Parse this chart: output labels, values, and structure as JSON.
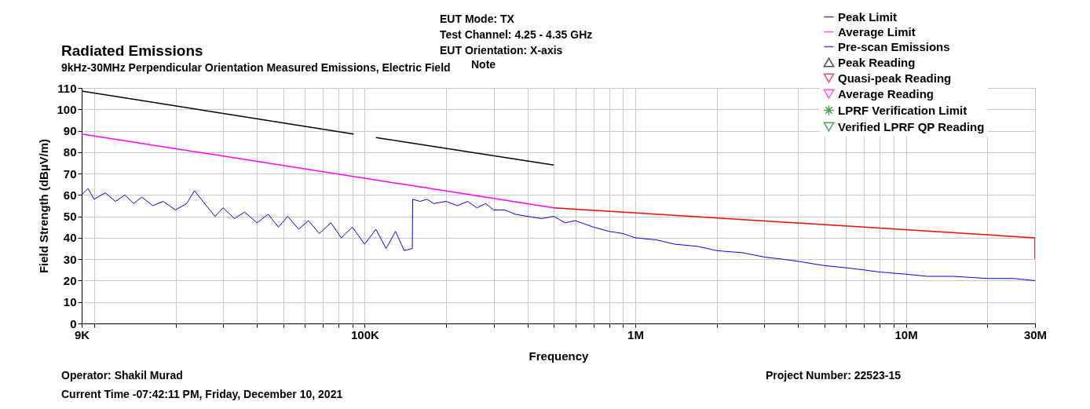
{
  "chart_data": {
    "type": "line",
    "title": "Radiated Emissions",
    "subtitle": "9kHz-30MHz Perpendicular Orientation Measured Emissions, Electric Field",
    "xlabel": "Frequency",
    "ylabel": "Field Strength (dBµV/m)",
    "annotations": [
      "EUT Mode: TX",
      "Test Channel: 4.25 - 4.35 GHz",
      "EUT Orientation: X-axis",
      "Note",
      "Operator: Shakil Murad",
      "Current Time -07:42:11 PM, Friday, December 10, 2021",
      "Project Number: 22523-15"
    ],
    "log": "x",
    "xlim": [
      9000,
      30000000
    ],
    "ylim": [
      0,
      110
    ],
    "xticks": [
      {
        "value": 9000,
        "label": "9K"
      },
      {
        "value": 10000,
        "label": null
      },
      {
        "value": 20000,
        "label": null
      },
      {
        "value": 30000,
        "label": null
      },
      {
        "value": 40000,
        "label": null
      },
      {
        "value": 50000,
        "label": null
      },
      {
        "value": 60000,
        "label": null
      },
      {
        "value": 70000,
        "label": null
      },
      {
        "value": 80000,
        "label": null
      },
      {
        "value": 90000,
        "label": null
      },
      {
        "value": 100000,
        "label": "100K"
      },
      {
        "value": 200000,
        "label": null
      },
      {
        "value": 300000,
        "label": null
      },
      {
        "value": 400000,
        "label": null
      },
      {
        "value": 500000,
        "label": null
      },
      {
        "value": 600000,
        "label": null
      },
      {
        "value": 700000,
        "label": null
      },
      {
        "value": 800000,
        "label": null
      },
      {
        "value": 900000,
        "label": null
      },
      {
        "value": 1000000,
        "label": "1M"
      },
      {
        "value": 2000000,
        "label": null
      },
      {
        "value": 3000000,
        "label": null
      },
      {
        "value": 4000000,
        "label": null
      },
      {
        "value": 5000000,
        "label": null
      },
      {
        "value": 6000000,
        "label": null
      },
      {
        "value": 7000000,
        "label": null
      },
      {
        "value": 8000000,
        "label": null
      },
      {
        "value": 9000000,
        "label": null
      },
      {
        "value": 10000000,
        "label": "10M"
      },
      {
        "value": 20000000,
        "label": null
      },
      {
        "value": 30000000,
        "label": "30M"
      }
    ],
    "yticks": [
      0,
      10,
      20,
      30,
      40,
      50,
      60,
      70,
      80,
      90,
      100,
      110
    ],
    "grid": true,
    "legend": "top right",
    "line_style": "solid",
    "series": [
      {
        "name": "Peak Limit",
        "color": "#000000",
        "x": [
          9000,
          91000,
          100000,
          110000,
          500000
        ],
        "values": [
          108.5,
          88.5,
          null,
          86.8,
          74
        ]
      },
      {
        "name": "Average Limit",
        "color": "#ff00ff",
        "x": [
          9000,
          500000
        ],
        "values": [
          88.5,
          54
        ]
      },
      {
        "name": "Pre-scan Emissions",
        "color": "#0000ff",
        "x": [
          9000,
          9500,
          10000,
          11000,
          12000,
          13000,
          14000,
          15000,
          16500,
          18000,
          20000,
          22000,
          23500,
          26000,
          28000,
          30000,
          33000,
          36000,
          40000,
          44000,
          48000,
          52000,
          57000,
          62000,
          68000,
          75000,
          82000,
          90000,
          100000,
          110000,
          120000,
          130000,
          140000,
          150000,
          150500,
          160000,
          170000,
          180000,
          200000,
          220000,
          240000,
          260000,
          280000,
          300000,
          330000,
          360000,
          400000,
          450000,
          500000,
          550000,
          600000,
          700000,
          800000,
          900000,
          1000000,
          1200000,
          1400000,
          1700000,
          2000000,
          2500000,
          3000000,
          3500000,
          4000000,
          5000000,
          6000000,
          7000000,
          8000000,
          10000000,
          12000000,
          15000000,
          20000000,
          25000000,
          30000000
        ],
        "values": [
          60,
          63,
          58,
          61,
          57,
          60,
          56,
          59,
          55,
          57,
          53,
          56,
          62,
          55,
          50,
          54,
          49,
          52,
          47,
          51,
          45,
          50,
          44,
          48,
          42,
          47,
          40,
          45,
          37,
          44,
          35,
          43,
          34,
          35,
          58,
          57,
          58,
          56,
          57,
          55,
          57,
          54,
          56,
          53,
          53,
          51,
          50,
          49,
          50,
          47,
          48,
          45,
          43,
          42,
          40,
          39,
          37,
          36,
          34,
          33,
          31,
          30,
          29,
          27,
          26,
          25,
          24,
          23,
          22,
          22,
          21,
          21,
          20
        ]
      },
      {
        "color": "#ff0000",
        "x": [
          500000,
          30000000,
          30000000
        ],
        "values": [
          54,
          40,
          30
        ]
      },
      {
        "name": "Peak Reading",
        "type": "scatter",
        "marker": "triangle",
        "color": "#000000"
      },
      {
        "name": "Quasi-peak Reading",
        "type": "scatter",
        "marker": "triangle-down",
        "color": "#ff0000"
      },
      {
        "name": "Average Reading",
        "type": "scatter",
        "marker": "triangle-down",
        "color": "#ff00ff"
      },
      {
        "name": "LPRF Verification Limit",
        "type": "scatter",
        "marker": "star",
        "color": "#008000"
      },
      {
        "name": "Verified LPRF QP Reading",
        "type": "scatter",
        "marker": "triangle-down",
        "color": "#008000"
      }
    ]
  }
}
